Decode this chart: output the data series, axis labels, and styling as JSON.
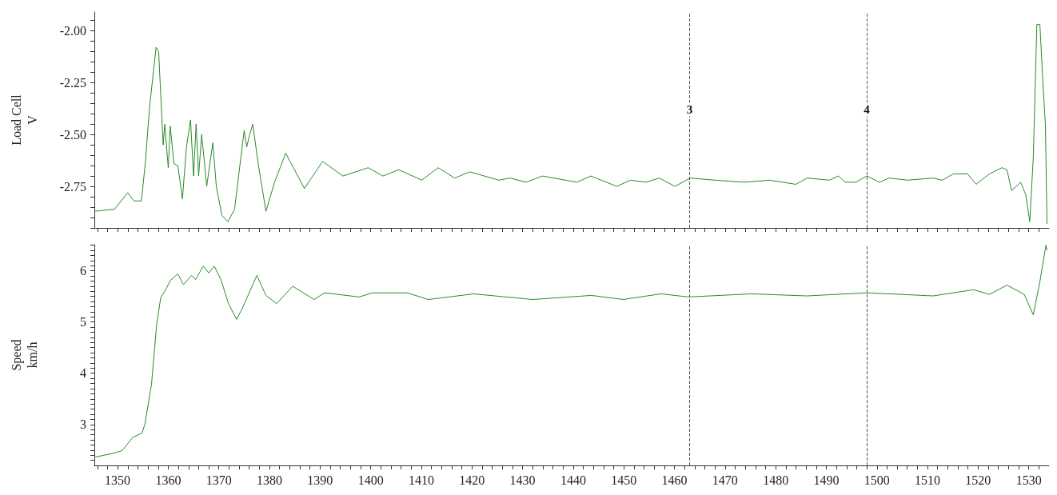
{
  "chart_data": [
    {
      "type": "line",
      "ylabel": "Load Cell\nV",
      "marker": "none",
      "line_style": "solid",
      "grid": false,
      "tick_labels": "y",
      "annotations": [
        {
          "text": "3",
          "x": 1463,
          "y": -2.38
        },
        {
          "text": "4",
          "x": 1498,
          "y": -2.38
        }
      ],
      "xlim": [
        1345.4,
        1534
      ],
      "ylim": [
        -2.95,
        -1.91
      ],
      "yticks": [
        {
          "value": -2.95,
          "label": null
        },
        {
          "value": -2.9,
          "label": null
        },
        {
          "value": -2.85,
          "label": null
        },
        {
          "value": -2.8,
          "label": null
        },
        {
          "value": -2.75,
          "label": "-2.75"
        },
        {
          "value": -2.7,
          "label": null
        },
        {
          "value": -2.65,
          "label": null
        },
        {
          "value": -2.6,
          "label": null
        },
        {
          "value": -2.55,
          "label": null
        },
        {
          "value": -2.5,
          "label": "-2.50"
        },
        {
          "value": -2.45,
          "label": null
        },
        {
          "value": -2.4,
          "label": null
        },
        {
          "value": -2.35,
          "label": null
        },
        {
          "value": -2.3,
          "label": null
        },
        {
          "value": -2.25,
          "label": "-2.25"
        },
        {
          "value": -2.2,
          "label": null
        },
        {
          "value": -2.15,
          "label": null
        },
        {
          "value": -2.1,
          "label": null
        },
        {
          "value": -2.05,
          "label": null
        },
        {
          "value": -2.0,
          "label": "-2.00"
        },
        {
          "value": -1.95,
          "label": null
        }
      ],
      "xticks": [
        1346,
        1348,
        1350,
        1352,
        1354,
        1356,
        1358,
        1360,
        1362,
        1364,
        1366,
        1368,
        1370,
        1372,
        1374,
        1376,
        1378,
        1380,
        1382,
        1384,
        1386,
        1388,
        1390,
        1392,
        1394,
        1396,
        1398,
        1400,
        1402,
        1404,
        1406,
        1408,
        1410,
        1412,
        1414,
        1416,
        1418,
        1420,
        1422,
        1424,
        1426,
        1428,
        1430,
        1432,
        1434,
        1436,
        1438,
        1440,
        1442,
        1444,
        1446,
        1448,
        1450,
        1452,
        1454,
        1456,
        1458,
        1460,
        1462,
        1464,
        1466,
        1468,
        1470,
        1472,
        1474,
        1476,
        1478,
        1480,
        1482,
        1484,
        1486,
        1488,
        1490,
        1492,
        1494,
        1496,
        1498,
        1500,
        1502,
        1504,
        1506,
        1508,
        1510,
        1512,
        1514,
        1516,
        1518,
        1520,
        1522,
        1524,
        1526,
        1528,
        1530,
        1532
      ],
      "ref_lines": [
        {
          "axis": "x",
          "value": 1463,
          "color": "#555555",
          "line_style": "dashed"
        },
        {
          "axis": "x",
          "value": 1498,
          "color": "#555555",
          "line_style": "dashed"
        }
      ],
      "x": [
        1345.4,
        1349.4,
        1352,
        1353.2,
        1354.7,
        1355.5,
        1356.3,
        1357.6,
        1358.1,
        1359,
        1359.3,
        1360,
        1360.4,
        1361.1,
        1361.9,
        1362.8,
        1363.6,
        1364.4,
        1365,
        1365.5,
        1366,
        1366.6,
        1367.6,
        1368.8,
        1369.5,
        1370.6,
        1371.8,
        1373.1,
        1374.7,
        1375,
        1375.5,
        1376.1,
        1376.7,
        1377.7,
        1379.3,
        1381,
        1383.2,
        1386.9,
        1390.5,
        1394.5,
        1399.5,
        1402.4,
        1405.5,
        1410.1,
        1413.3,
        1416.6,
        1419.6,
        1425.3,
        1427.5,
        1430.7,
        1433.9,
        1440.7,
        1443.5,
        1448.6,
        1451.3,
        1454.4,
        1457,
        1460.1,
        1463.1,
        1468,
        1473.8,
        1478.8,
        1484,
        1486.2,
        1490.6,
        1492.4,
        1493.7,
        1495.8,
        1498,
        1500.5,
        1502.4,
        1506.1,
        1511.1,
        1512.9,
        1515.1,
        1517.9,
        1519.6,
        1522.2,
        1524.7,
        1525.7,
        1526.6,
        1528.4,
        1529.4,
        1530.2,
        1530.9,
        1531.6,
        1532.2,
        1532.8,
        1533.3,
        1533.6
      ],
      "series": [
        {
          "color": "#2a8a2a",
          "values": [
            -2.87,
            -2.86,
            -2.78,
            -2.82,
            -2.82,
            -2.63,
            -2.37,
            -2.08,
            -2.1,
            -2.55,
            -2.45,
            -2.66,
            -2.46,
            -2.64,
            -2.65,
            -2.81,
            -2.56,
            -2.43,
            -2.7,
            -2.45,
            -2.7,
            -2.5,
            -2.75,
            -2.54,
            -2.75,
            -2.89,
            -2.92,
            -2.86,
            -2.54,
            -2.48,
            -2.56,
            -2.5,
            -2.45,
            -2.63,
            -2.87,
            -2.73,
            -2.59,
            -2.76,
            -2.63,
            -2.7,
            -2.66,
            -2.7,
            -2.67,
            -2.72,
            -2.66,
            -2.71,
            -2.68,
            -2.72,
            -2.71,
            -2.73,
            -2.7,
            -2.73,
            -2.7,
            -2.75,
            -2.72,
            -2.73,
            -2.71,
            -2.75,
            -2.71,
            -2.72,
            -2.73,
            -2.72,
            -2.74,
            -2.71,
            -2.72,
            -2.7,
            -2.73,
            -2.73,
            -2.7,
            -2.73,
            -2.71,
            -2.72,
            -2.71,
            -2.72,
            -2.69,
            -2.69,
            -2.74,
            -2.69,
            -2.66,
            -2.67,
            -2.77,
            -2.73,
            -2.79,
            -2.92,
            -2.61,
            -1.97,
            -1.97,
            -2.25,
            -2.46,
            -2.93
          ]
        }
      ]
    },
    {
      "type": "line",
      "ylabel": "Speed\nkm/h",
      "marker": "none",
      "line_style": "solid",
      "grid": false,
      "xlim": [
        1345.4,
        1534
      ],
      "ylim": [
        2.2,
        6.51
      ],
      "yticks": [
        {
          "value": 2.3,
          "label": null
        },
        {
          "value": 2.4,
          "label": null
        },
        {
          "value": 2.5,
          "label": null
        },
        {
          "value": 2.6,
          "label": null
        },
        {
          "value": 2.7,
          "label": null
        },
        {
          "value": 2.8,
          "label": null
        },
        {
          "value": 2.9,
          "label": null
        },
        3,
        {
          "value": 3.1,
          "label": null
        },
        {
          "value": 3.2,
          "label": null
        },
        {
          "value": 3.3,
          "label": null
        },
        {
          "value": 3.4,
          "label": null
        },
        {
          "value": 3.5,
          "label": null
        },
        {
          "value": 3.6,
          "label": null
        },
        {
          "value": 3.7,
          "label": null
        },
        {
          "value": 3.8,
          "label": null
        },
        {
          "value": 3.9,
          "label": null
        },
        4,
        {
          "value": 4.1,
          "label": null
        },
        {
          "value": 4.2,
          "label": null
        },
        {
          "value": 4.3,
          "label": null
        },
        {
          "value": 4.4,
          "label": null
        },
        {
          "value": 4.5,
          "label": null
        },
        {
          "value": 4.6,
          "label": null
        },
        {
          "value": 4.7,
          "label": null
        },
        {
          "value": 4.8,
          "label": null
        },
        {
          "value": 4.9,
          "label": null
        },
        5,
        {
          "value": 5.1,
          "label": null
        },
        {
          "value": 5.2,
          "label": null
        },
        {
          "value": 5.3,
          "label": null
        },
        {
          "value": 5.4,
          "label": null
        },
        {
          "value": 5.5,
          "label": null
        },
        {
          "value": 5.6,
          "label": null
        },
        {
          "value": 5.7,
          "label": null
        },
        {
          "value": 5.8,
          "label": null
        },
        {
          "value": 5.9,
          "label": null
        },
        6,
        {
          "value": 6.1,
          "label": null
        },
        {
          "value": 6.2,
          "label": null
        },
        {
          "value": 6.3,
          "label": null
        },
        {
          "value": 6.4,
          "label": null
        },
        {
          "value": 6.5,
          "label": null
        }
      ],
      "xticks": [
        {
          "value": 1346,
          "label": null
        },
        {
          "value": 1348,
          "label": null
        },
        1350,
        {
          "value": 1352,
          "label": null
        },
        {
          "value": 1354,
          "label": null
        },
        {
          "value": 1356,
          "label": null
        },
        {
          "value": 1358,
          "label": null
        },
        1360,
        {
          "value": 1362,
          "label": null
        },
        {
          "value": 1364,
          "label": null
        },
        {
          "value": 1366,
          "label": null
        },
        {
          "value": 1368,
          "label": null
        },
        1370,
        {
          "value": 1372,
          "label": null
        },
        {
          "value": 1374,
          "label": null
        },
        {
          "value": 1376,
          "label": null
        },
        {
          "value": 1378,
          "label": null
        },
        1380,
        {
          "value": 1382,
          "label": null
        },
        {
          "value": 1384,
          "label": null
        },
        {
          "value": 1386,
          "label": null
        },
        {
          "value": 1388,
          "label": null
        },
        1390,
        {
          "value": 1392,
          "label": null
        },
        {
          "value": 1394,
          "label": null
        },
        {
          "value": 1396,
          "label": null
        },
        {
          "value": 1398,
          "label": null
        },
        1400,
        {
          "value": 1402,
          "label": null
        },
        {
          "value": 1404,
          "label": null
        },
        {
          "value": 1406,
          "label": null
        },
        {
          "value": 1408,
          "label": null
        },
        1410,
        {
          "value": 1412,
          "label": null
        },
        {
          "value": 1414,
          "label": null
        },
        {
          "value": 1416,
          "label": null
        },
        {
          "value": 1418,
          "label": null
        },
        1420,
        {
          "value": 1422,
          "label": null
        },
        {
          "value": 1424,
          "label": null
        },
        {
          "value": 1426,
          "label": null
        },
        {
          "value": 1428,
          "label": null
        },
        1430,
        {
          "value": 1432,
          "label": null
        },
        {
          "value": 1434,
          "label": null
        },
        {
          "value": 1436,
          "label": null
        },
        {
          "value": 1438,
          "label": null
        },
        1440,
        {
          "value": 1442,
          "label": null
        },
        {
          "value": 1444,
          "label": null
        },
        {
          "value": 1446,
          "label": null
        },
        {
          "value": 1448,
          "label": null
        },
        1450,
        {
          "value": 1452,
          "label": null
        },
        {
          "value": 1454,
          "label": null
        },
        {
          "value": 1456,
          "label": null
        },
        {
          "value": 1458,
          "label": null
        },
        1460,
        {
          "value": 1462,
          "label": null
        },
        {
          "value": 1464,
          "label": null
        },
        {
          "value": 1466,
          "label": null
        },
        {
          "value": 1468,
          "label": null
        },
        1470,
        {
          "value": 1472,
          "label": null
        },
        {
          "value": 1474,
          "label": null
        },
        {
          "value": 1476,
          "label": null
        },
        {
          "value": 1478,
          "label": null
        },
        1480,
        {
          "value": 1482,
          "label": null
        },
        {
          "value": 1484,
          "label": null
        },
        {
          "value": 1486,
          "label": null
        },
        {
          "value": 1488,
          "label": null
        },
        1490,
        {
          "value": 1492,
          "label": null
        },
        {
          "value": 1494,
          "label": null
        },
        {
          "value": 1496,
          "label": null
        },
        {
          "value": 1498,
          "label": null
        },
        1500,
        {
          "value": 1502,
          "label": null
        },
        {
          "value": 1504,
          "label": null
        },
        {
          "value": 1506,
          "label": null
        },
        {
          "value": 1508,
          "label": null
        },
        1510,
        {
          "value": 1512,
          "label": null
        },
        {
          "value": 1514,
          "label": null
        },
        {
          "value": 1516,
          "label": null
        },
        {
          "value": 1518,
          "label": null
        },
        1520,
        {
          "value": 1522,
          "label": null
        },
        {
          "value": 1524,
          "label": null
        },
        {
          "value": 1526,
          "label": null
        },
        {
          "value": 1528,
          "label": null
        },
        1530,
        {
          "value": 1532,
          "label": null
        }
      ],
      "ref_lines": [
        {
          "axis": "x",
          "value": 1463,
          "color": "#555555",
          "line_style": "dashed"
        },
        {
          "axis": "x",
          "value": 1498,
          "color": "#555555",
          "line_style": "dashed"
        }
      ],
      "x": [
        1345.4,
        1349.3,
        1350.9,
        1353,
        1354.8,
        1355.4,
        1356.7,
        1357.7,
        1358.5,
        1359.6,
        1360.4,
        1361.9,
        1363,
        1364.6,
        1365.4,
        1366.9,
        1368,
        1369.1,
        1370.4,
        1371.9,
        1373.5,
        1374.6,
        1377.5,
        1379.3,
        1381.4,
        1384.6,
        1388.8,
        1390.9,
        1397.7,
        1400.4,
        1407.2,
        1411.4,
        1420.3,
        1432,
        1443.6,
        1449.9,
        1457.3,
        1462.8,
        1475.2,
        1486.2,
        1498,
        1511.1,
        1519.1,
        1522.2,
        1525.7,
        1529.1,
        1530.9,
        1532.2,
        1533.4,
        1533.6
      ],
      "series": [
        {
          "color": "#2a8a2a",
          "values": [
            2.36,
            2.44,
            2.49,
            2.75,
            2.83,
            3.01,
            3.79,
            4.94,
            5.47,
            5.65,
            5.81,
            5.94,
            5.73,
            5.91,
            5.83,
            6.09,
            5.96,
            6.09,
            5.83,
            5.36,
            5.05,
            5.26,
            5.91,
            5.52,
            5.36,
            5.7,
            5.44,
            5.57,
            5.49,
            5.57,
            5.57,
            5.44,
            5.55,
            5.44,
            5.52,
            5.44,
            5.55,
            5.49,
            5.55,
            5.51,
            5.57,
            5.51,
            5.63,
            5.54,
            5.72,
            5.54,
            5.14,
            5.79,
            6.5,
            6.4
          ]
        }
      ]
    }
  ]
}
